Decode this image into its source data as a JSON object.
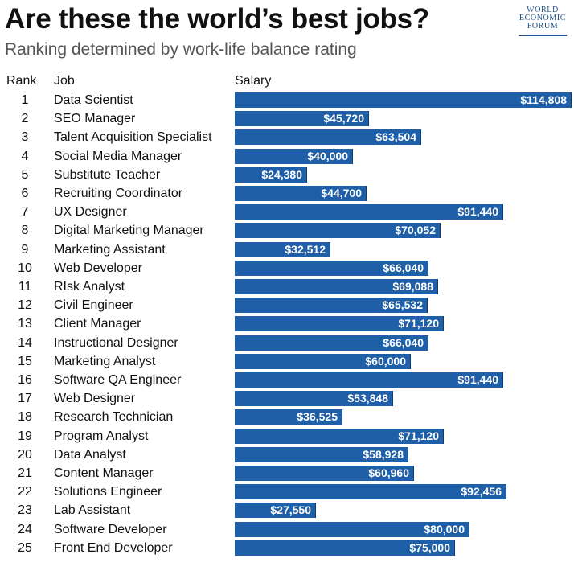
{
  "header": {
    "title": "Are these the world’s best jobs?",
    "subtitle": "Ranking determined by work-life balance rating",
    "logo": {
      "lines": [
        "WORLD",
        "ECONOMIC",
        "FORUM"
      ]
    }
  },
  "columns": {
    "rank": "Rank",
    "job": "Job",
    "salary": "Salary"
  },
  "colors": {
    "bar": "#1f5fa7",
    "value_text": "#ffffff"
  },
  "chart_data": {
    "type": "bar",
    "orientation": "horizontal",
    "title": "Are these the world’s best jobs?",
    "subtitle": "Ranking determined by work-life balance rating",
    "categories": [
      "Data Scientist",
      "SEO Manager",
      "Talent Acquisition Specialist",
      "Social Media Manager",
      "Substitute Teacher",
      "Recruiting Coordinator",
      "UX Designer",
      "Digital Marketing Manager",
      "Marketing Assistant",
      "Web Developer",
      "RIsk Analyst",
      "Civil Engineer",
      "Client Manager",
      "Instructional Designer",
      "Marketing Analyst",
      "Software QA Engineer",
      "Web Designer",
      "Research Technician",
      "Program Analyst",
      "Data Analyst",
      "Content Manager",
      "Solutions Engineer",
      "Lab Assistant",
      "Software Developer",
      "Front End Developer"
    ],
    "ranks": [
      "1",
      "2",
      "3",
      "4",
      "5",
      "6",
      "7",
      "8",
      "9",
      "10",
      "11",
      "12",
      "13",
      "14",
      "15",
      "16",
      "17",
      "18",
      "19",
      "20",
      "21",
      "22",
      "23",
      "24",
      "25"
    ],
    "values": [
      114808,
      45720,
      63504,
      40000,
      24380,
      44700,
      91440,
      70052,
      32512,
      66040,
      69088,
      65532,
      71120,
      66040,
      60000,
      91440,
      53848,
      36525,
      71120,
      58928,
      60960,
      92456,
      27550,
      80000,
      75000
    ],
    "labels": [
      "$114,808",
      "$45,720",
      "$63,504",
      "$40,000",
      "$24,380",
      "$44,700",
      "$91,440",
      "$70,052",
      "$32,512",
      "$66,040",
      "$69,088",
      "$65,532",
      "$71,120",
      "$66,040",
      "$60,000",
      "$91,440",
      "$53,848",
      "$36,525",
      "$71,120",
      "$58,928",
      "$60,960",
      "$92,456",
      "$27,550",
      "$80,000",
      "$75,000"
    ],
    "xlim": [
      0,
      114808
    ],
    "ylabel": "Salary"
  }
}
